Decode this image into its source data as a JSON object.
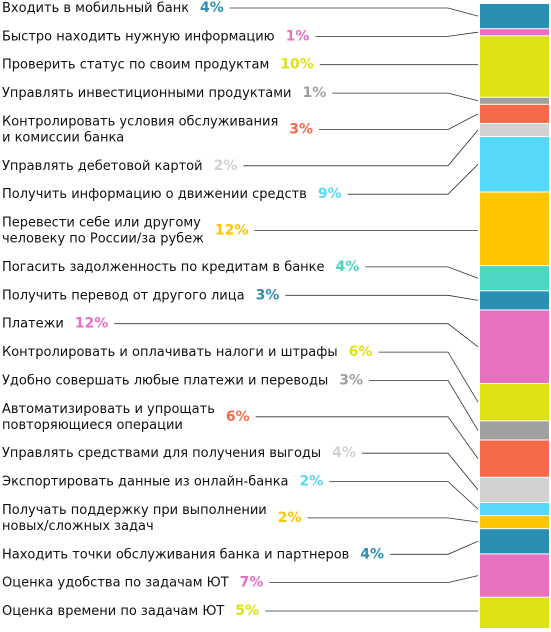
{
  "chart_data": {
    "type": "bar",
    "orientation": "stacked-column-with-callouts",
    "grid": false,
    "legend": "left",
    "items": [
      {
        "label": [
          "Входить в мобильный банк"
        ],
        "pct_label": "4%",
        "value": 4,
        "color": "#2b8fb3"
      },
      {
        "label": [
          "Быстро находить нужную информацию"
        ],
        "pct_label": "1%",
        "value": 1,
        "color": "#e96fbf"
      },
      {
        "label": [
          "Проверить статус по своим продуктам"
        ],
        "pct_label": "10%",
        "value": 10,
        "color": "#dde312"
      },
      {
        "label": [
          "Управлять инвестиционными продуктами"
        ],
        "pct_label": "1%",
        "value": 1,
        "color": "#a0a0a0"
      },
      {
        "label": [
          "Контролировать условия обслуживания",
          "и комиссии банка"
        ],
        "pct_label": "3%",
        "value": 3,
        "color": "#f66a4a"
      },
      {
        "label": [
          "Управлять дебетовой картой"
        ],
        "pct_label": "2%",
        "value": 2,
        "color": "#d2d2d2"
      },
      {
        "label": [
          "Получить информацию о движении средств"
        ],
        "pct_label": "9%",
        "value": 9,
        "color": "#56d8fa"
      },
      {
        "label": [
          "Перевести себе или другому",
          "человеку по России/за рубеж"
        ],
        "pct_label": "12%",
        "value": 12,
        "color": "#fdc600"
      },
      {
        "label": [
          "Погасить задолженность по кредитам в банке"
        ],
        "pct_label": "4%",
        "value": 4,
        "color": "#4ad8c0"
      },
      {
        "label": [
          "Получить перевод от другого лица"
        ],
        "pct_label": "3%",
        "value": 3,
        "color": "#2b8fb3"
      },
      {
        "label": [
          "Платежи"
        ],
        "pct_label": "12%",
        "value": 12,
        "color": "#e96fbf"
      },
      {
        "label": [
          "Контролировать и оплачивать налоги и штрафы"
        ],
        "pct_label": "6%",
        "value": 6,
        "color": "#dde312"
      },
      {
        "label": [
          "Удобно совершать любые платежи и переводы"
        ],
        "pct_label": "3%",
        "value": 3,
        "color": "#a0a0a0"
      },
      {
        "label": [
          "Автоматизировать и упрощать",
          "повторяющиеся операции"
        ],
        "pct_label": "6%",
        "value": 6,
        "color": "#f66a4a"
      },
      {
        "label": [
          "Управлять средствами для получения выгоды"
        ],
        "pct_label": "4%",
        "value": 4,
        "color": "#d2d2d2"
      },
      {
        "label": [
          "Экспортировать данные из онлайн-банка"
        ],
        "pct_label": "2%",
        "value": 2,
        "color": "#56d8fa"
      },
      {
        "label": [
          "Получать поддержку при выполнении",
          "новых/сложных задач"
        ],
        "pct_label": "2%",
        "value": 2,
        "color": "#fdc600"
      },
      {
        "label": [
          "Находить точки обслуживания банка и партнеров"
        ],
        "pct_label": "4%",
        "value": 4,
        "color": "#2b8fb3"
      },
      {
        "label": [
          "Оценка удобства по задачам ЮТ"
        ],
        "pct_label": "7%",
        "value": 7,
        "color": "#e96fbf"
      },
      {
        "label": [
          "Оценка времени по задачам ЮТ"
        ],
        "pct_label": "5%",
        "value": 5,
        "color": "#dde312"
      }
    ]
  }
}
